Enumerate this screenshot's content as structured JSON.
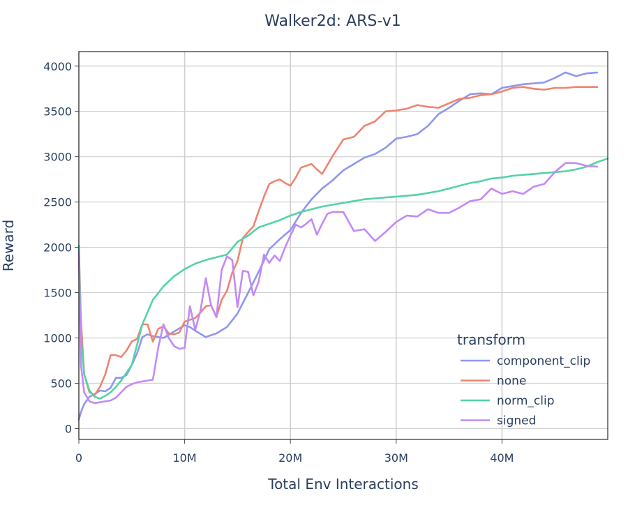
{
  "chart_data": {
    "type": "line",
    "title": "Walker2d: ARS-v1",
    "xlabel": "Total Env Interactions",
    "ylabel": "Reward",
    "xlim": [
      0,
      50000000
    ],
    "ylim": [
      -120,
      4160
    ],
    "x_ticks": [
      {
        "value": 0,
        "label": "0"
      },
      {
        "value": 10000000,
        "label": "10M"
      },
      {
        "value": 20000000,
        "label": "20M"
      },
      {
        "value": 30000000,
        "label": "30M"
      },
      {
        "value": 40000000,
        "label": "40M"
      }
    ],
    "y_ticks": [
      {
        "value": 0,
        "label": "0"
      },
      {
        "value": 500,
        "label": "500"
      },
      {
        "value": 1000,
        "label": "1000"
      },
      {
        "value": 1500,
        "label": "1500"
      },
      {
        "value": 2000,
        "label": "2000"
      },
      {
        "value": 2500,
        "label": "2500"
      },
      {
        "value": 3000,
        "label": "3000"
      },
      {
        "value": 3500,
        "label": "3500"
      },
      {
        "value": 4000,
        "label": "4000"
      }
    ],
    "grid": true,
    "legend": {
      "title": "transform",
      "position": "bottom-right"
    },
    "series": [
      {
        "name": "component_clip",
        "color": "#8e97f0",
        "x": [
          0,
          200000,
          500000,
          1000000,
          1500000,
          2000000,
          2500000,
          3000000,
          3500000,
          4000000,
          4500000,
          5000000,
          5500000,
          6000000,
          6500000,
          7000000,
          8000000,
          9000000,
          10000000,
          10500000,
          11000000,
          12000000,
          13000000,
          14000000,
          15000000,
          16000000,
          17000000,
          18000000,
          19000000,
          20000000,
          21000000,
          22000000,
          23000000,
          24000000,
          25000000,
          26000000,
          27000000,
          28000000,
          29000000,
          30000000,
          31000000,
          32000000,
          33000000,
          34000000,
          35000000,
          36000000,
          37000000,
          38000000,
          39000000,
          40000000,
          41000000,
          42000000,
          43000000,
          44000000,
          45000000,
          46000000,
          47000000,
          48000000,
          49000000
        ],
        "values": [
          100,
          180,
          270,
          350,
          380,
          420,
          410,
          450,
          560,
          560,
          590,
          700,
          830,
          1010,
          1040,
          1020,
          1000,
          1070,
          1140,
          1120,
          1080,
          1010,
          1050,
          1120,
          1270,
          1500,
          1730,
          1980,
          2090,
          2190,
          2380,
          2530,
          2650,
          2740,
          2850,
          2920,
          2990,
          3030,
          3100,
          3200,
          3220,
          3250,
          3340,
          3470,
          3540,
          3620,
          3690,
          3700,
          3690,
          3760,
          3780,
          3800,
          3810,
          3820,
          3870,
          3930,
          3890,
          3920,
          3930
        ]
      },
      {
        "name": "none",
        "color": "#ef8470",
        "x": [
          0,
          200000,
          500000,
          1000000,
          1500000,
          2000000,
          2500000,
          3000000,
          3500000,
          4000000,
          4500000,
          5000000,
          5500000,
          6000000,
          6500000,
          7000000,
          7500000,
          8000000,
          8500000,
          9000000,
          9500000,
          10000000,
          10500000,
          11000000,
          11500000,
          12000000,
          12500000,
          13000000,
          13500000,
          14000000,
          14500000,
          15000000,
          15500000,
          16000000,
          16500000,
          17000000,
          17500000,
          18000000,
          18500000,
          19000000,
          19500000,
          20000000,
          20500000,
          21000000,
          21500000,
          22000000,
          22500000,
          23000000,
          24000000,
          25000000,
          26000000,
          27000000,
          28000000,
          29000000,
          30000000,
          31000000,
          32000000,
          33000000,
          34000000,
          35000000,
          36000000,
          37000000,
          38000000,
          39000000,
          40000000,
          41000000,
          42000000,
          43000000,
          44000000,
          45000000,
          46000000,
          47000000,
          48000000,
          49000000
        ],
        "values": [
          2010,
          1200,
          600,
          400,
          370,
          460,
          600,
          810,
          810,
          790,
          860,
          960,
          990,
          1150,
          1150,
          960,
          1100,
          1130,
          1050,
          1040,
          1060,
          1180,
          1200,
          1220,
          1280,
          1350,
          1360,
          1230,
          1420,
          1520,
          1720,
          1850,
          2100,
          2170,
          2230,
          2400,
          2560,
          2700,
          2730,
          2750,
          2710,
          2680,
          2770,
          2880,
          2900,
          2920,
          2860,
          2810,
          3010,
          3190,
          3220,
          3340,
          3390,
          3500,
          3510,
          3530,
          3570,
          3550,
          3540,
          3590,
          3640,
          3650,
          3680,
          3690,
          3720,
          3760,
          3770,
          3750,
          3740,
          3760,
          3760,
          3770,
          3770,
          3770
        ]
      },
      {
        "name": "norm_clip",
        "color": "#53d3a6",
        "x": [
          0,
          200000,
          500000,
          1000000,
          1500000,
          2000000,
          2500000,
          3000000,
          3500000,
          4000000,
          5000000,
          6000000,
          7000000,
          8000000,
          9000000,
          10000000,
          11000000,
          12000000,
          13000000,
          14000000,
          15000000,
          16000000,
          17000000,
          18000000,
          19000000,
          20000000,
          21000000,
          22000000,
          23000000,
          24000000,
          25000000,
          26000000,
          27000000,
          28000000,
          29000000,
          30000000,
          31000000,
          32000000,
          33000000,
          34000000,
          35000000,
          36000000,
          37000000,
          38000000,
          39000000,
          40000000,
          41000000,
          42000000,
          43000000,
          44000000,
          45000000,
          46000000,
          47000000,
          48000000,
          49000000,
          50000000
        ],
        "values": [
          2020,
          1000,
          600,
          420,
          350,
          330,
          360,
          400,
          460,
          530,
          700,
          1150,
          1420,
          1570,
          1680,
          1760,
          1820,
          1860,
          1890,
          1920,
          2060,
          2130,
          2220,
          2260,
          2300,
          2350,
          2390,
          2420,
          2450,
          2470,
          2490,
          2510,
          2530,
          2540,
          2550,
          2560,
          2570,
          2580,
          2600,
          2620,
          2650,
          2680,
          2710,
          2730,
          2760,
          2770,
          2790,
          2800,
          2810,
          2820,
          2830,
          2840,
          2860,
          2890,
          2940,
          2980
        ]
      },
      {
        "name": "signed",
        "color": "#c28af6",
        "x": [
          0,
          200000,
          500000,
          1000000,
          1500000,
          2000000,
          2500000,
          3000000,
          3500000,
          4000000,
          4500000,
          5000000,
          5500000,
          6000000,
          6500000,
          7000000,
          7500000,
          8000000,
          8500000,
          9000000,
          9500000,
          10000000,
          10500000,
          11000000,
          11500000,
          12000000,
          12500000,
          13000000,
          13500000,
          14000000,
          14500000,
          15000000,
          15500000,
          16000000,
          16500000,
          17000000,
          17500000,
          18000000,
          18500000,
          19000000,
          19500000,
          20000000,
          20500000,
          21000000,
          21500000,
          22000000,
          22500000,
          23000000,
          23500000,
          24000000,
          25000000,
          26000000,
          27000000,
          28000000,
          29000000,
          30000000,
          31000000,
          32000000,
          33000000,
          34000000,
          35000000,
          36000000,
          37000000,
          38000000,
          39000000,
          40000000,
          41000000,
          42000000,
          43000000,
          44000000,
          45000000,
          46000000,
          47000000,
          48000000,
          49000000
        ],
        "values": [
          1950,
          700,
          400,
          300,
          280,
          290,
          300,
          310,
          340,
          400,
          460,
          490,
          510,
          520,
          530,
          540,
          890,
          1150,
          1000,
          910,
          880,
          890,
          1350,
          1090,
          1300,
          1660,
          1360,
          1230,
          1750,
          1900,
          1860,
          1340,
          1740,
          1730,
          1470,
          1620,
          1920,
          1830,
          1910,
          1850,
          2000,
          2130,
          2250,
          2220,
          2260,
          2310,
          2140,
          2260,
          2370,
          2390,
          2390,
          2180,
          2200,
          2070,
          2170,
          2280,
          2350,
          2340,
          2420,
          2380,
          2380,
          2440,
          2510,
          2530,
          2650,
          2590,
          2620,
          2590,
          2670,
          2700,
          2830,
          2930,
          2930,
          2900,
          2890
        ]
      }
    ]
  }
}
